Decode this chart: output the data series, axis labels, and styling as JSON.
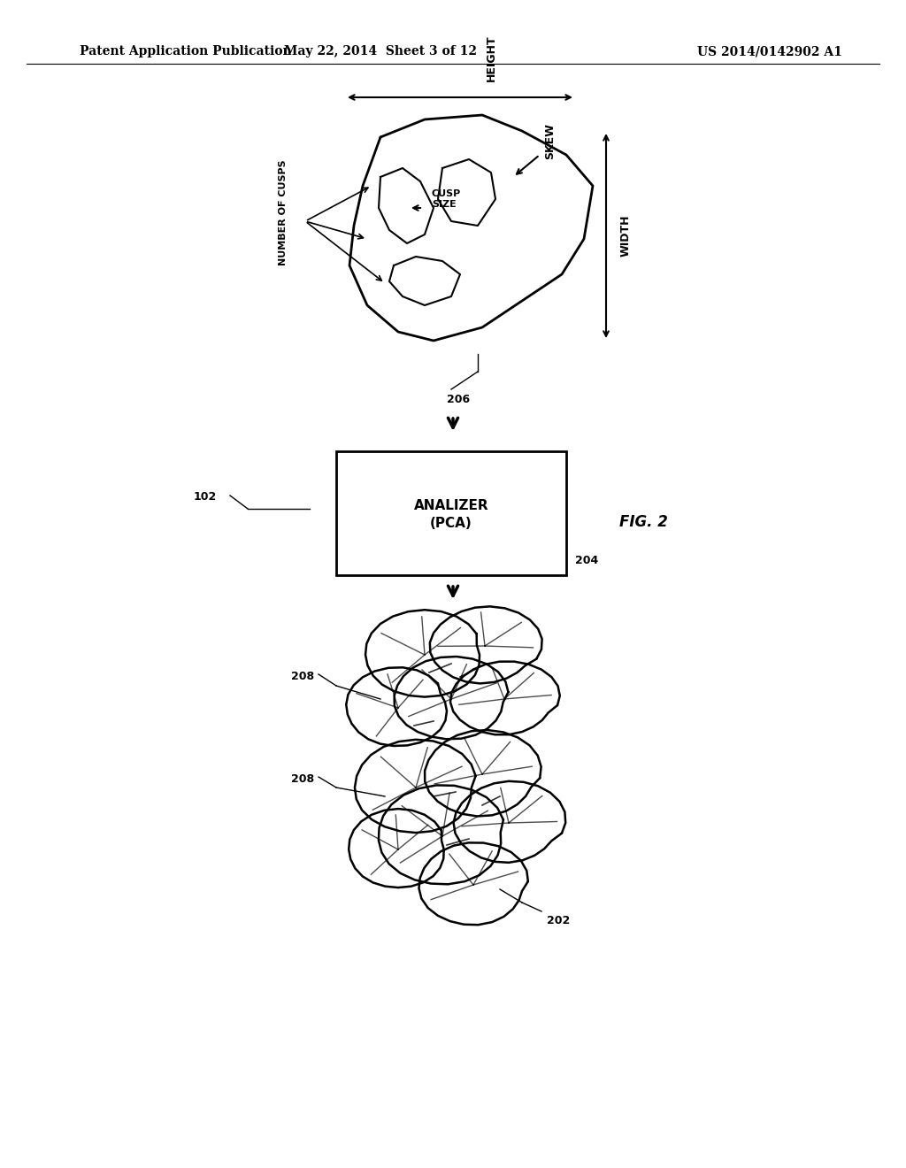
{
  "bg_color": "#ffffff",
  "header_left": "Patent Application Publication",
  "header_mid": "May 22, 2014  Sheet 3 of 12",
  "header_right": "US 2014/0142902 A1",
  "fig_label": "FIG. 2",
  "label_102": "102",
  "label_202": "202",
  "label_204": "204",
  "label_206": "206",
  "label_208a": "208",
  "label_208b": "208",
  "analyzer_text_line1": "ANALIZER",
  "analyzer_text_line2": "(PCA)",
  "dim_height": "HEIGHT",
  "dim_width": "WIDTH",
  "dim_skew": "SKEW",
  "dim_cusp_size": "CUSP\nSIZE",
  "dim_num_cusps": "NUMBER OF CUSPS"
}
